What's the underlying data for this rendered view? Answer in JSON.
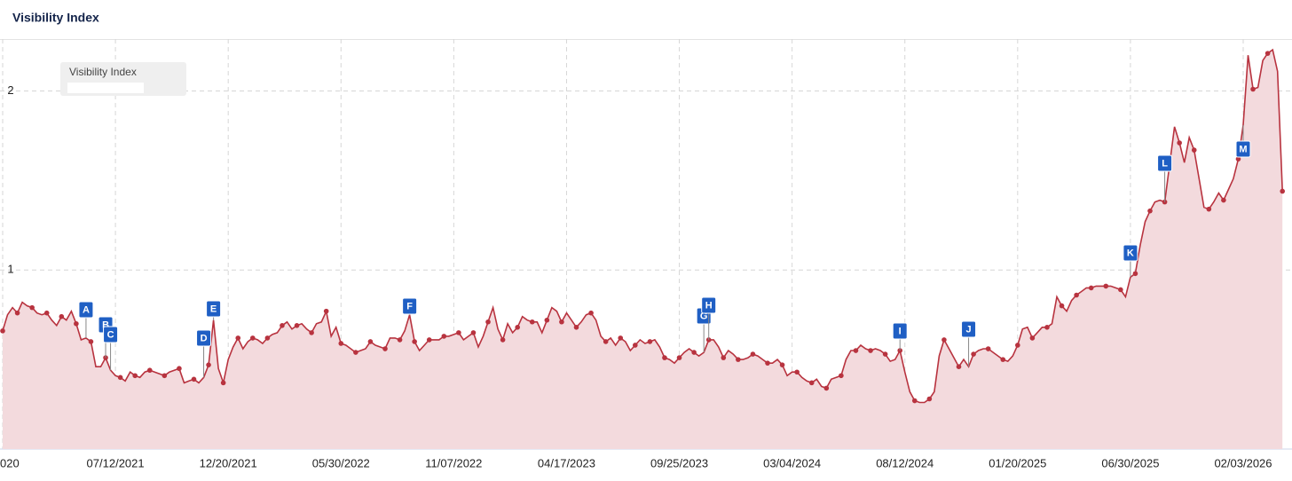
{
  "chart_data": {
    "type": "line",
    "title": "Visibility Index",
    "categories": [
      "020",
      null,
      null,
      null,
      null,
      null,
      null,
      null,
      null,
      null,
      null,
      null,
      null,
      null,
      null,
      null,
      null,
      null,
      null,
      null,
      null,
      null,
      null,
      "07/12/2021",
      null,
      null,
      null,
      null,
      null,
      null,
      null,
      null,
      null,
      null,
      null,
      null,
      null,
      null,
      null,
      null,
      null,
      null,
      null,
      null,
      null,
      null,
      "12/20/2021",
      null,
      null,
      null,
      null,
      null,
      null,
      null,
      null,
      null,
      null,
      null,
      null,
      null,
      null,
      null,
      null,
      null,
      null,
      null,
      null,
      null,
      null,
      "05/30/2022",
      null,
      null,
      null,
      null,
      null,
      null,
      null,
      null,
      null,
      null,
      null,
      null,
      null,
      null,
      null,
      null,
      null,
      null,
      null,
      null,
      null,
      null,
      "11/07/2022",
      null,
      null,
      null,
      null,
      null,
      null,
      null,
      null,
      null,
      null,
      null,
      null,
      null,
      null,
      null,
      null,
      null,
      null,
      null,
      null,
      null,
      null,
      "04/17/2023",
      null,
      null,
      null,
      null,
      null,
      null,
      null,
      null,
      null,
      null,
      null,
      null,
      null,
      null,
      null,
      null,
      null,
      null,
      null,
      null,
      null,
      null,
      "09/25/2023",
      null,
      null,
      null,
      null,
      null,
      null,
      null,
      null,
      null,
      null,
      null,
      null,
      null,
      null,
      null,
      null,
      null,
      null,
      null,
      null,
      null,
      null,
      "03/04/2024",
      null,
      null,
      null,
      null,
      null,
      null,
      null,
      null,
      null,
      null,
      null,
      null,
      null,
      null,
      null,
      null,
      null,
      null,
      null,
      null,
      null,
      null,
      "08/12/2024",
      null,
      null,
      null,
      null,
      null,
      null,
      null,
      null,
      null,
      null,
      null,
      null,
      null,
      null,
      null,
      null,
      null,
      null,
      null,
      null,
      null,
      null,
      "01/20/2025",
      null,
      null,
      null,
      null,
      null,
      null,
      null,
      null,
      null,
      null,
      null,
      null,
      null,
      null,
      null,
      null,
      null,
      null,
      null,
      null,
      null,
      null,
      "06/30/2025",
      null,
      null,
      null,
      null,
      null,
      null,
      null,
      null,
      null,
      null,
      null,
      null,
      null,
      null,
      null,
      null,
      null,
      null,
      null,
      null,
      null,
      null,
      "02/03/2026",
      null,
      null,
      null,
      null,
      null,
      null,
      null,
      null
    ],
    "series": [
      {
        "name": "Visibility Index",
        "color": "#b8333f",
        "fill": "#f3dadd",
        "values": [
          0.66,
          0.75,
          0.79,
          0.76,
          0.82,
          0.8,
          0.79,
          0.76,
          0.75,
          0.76,
          0.72,
          0.69,
          0.74,
          0.72,
          0.77,
          0.7,
          0.61,
          0.62,
          0.6,
          0.46,
          0.46,
          0.51,
          0.44,
          0.41,
          0.4,
          0.38,
          0.43,
          0.41,
          0.4,
          0.43,
          0.44,
          0.43,
          0.42,
          0.41,
          0.43,
          0.44,
          0.45,
          0.37,
          0.38,
          0.39,
          0.37,
          0.4,
          0.47,
          0.72,
          0.45,
          0.37,
          0.5,
          0.57,
          0.62,
          0.56,
          0.6,
          0.62,
          0.61,
          0.59,
          0.62,
          0.64,
          0.65,
          0.69,
          0.71,
          0.67,
          0.69,
          0.7,
          0.67,
          0.65,
          0.7,
          0.71,
          0.77,
          0.63,
          0.68,
          0.59,
          0.58,
          0.56,
          0.54,
          0.55,
          0.56,
          0.6,
          0.58,
          0.57,
          0.56,
          0.62,
          0.62,
          0.61,
          0.66,
          0.75,
          0.6,
          0.55,
          0.58,
          0.61,
          0.61,
          0.61,
          0.63,
          0.63,
          0.64,
          0.65,
          0.61,
          0.63,
          0.65,
          0.57,
          0.63,
          0.71,
          0.79,
          0.67,
          0.61,
          0.7,
          0.65,
          0.68,
          0.74,
          0.72,
          0.71,
          0.71,
          0.65,
          0.72,
          0.79,
          0.77,
          0.71,
          0.76,
          0.72,
          0.68,
          0.71,
          0.75,
          0.76,
          0.72,
          0.63,
          0.6,
          0.62,
          0.58,
          0.62,
          0.6,
          0.55,
          0.58,
          0.61,
          0.59,
          0.6,
          0.61,
          0.57,
          0.51,
          0.5,
          0.48,
          0.51,
          0.54,
          0.56,
          0.54,
          0.52,
          0.54,
          0.61,
          0.61,
          0.57,
          0.51,
          0.55,
          0.53,
          0.5,
          0.5,
          0.51,
          0.53,
          0.52,
          0.5,
          0.48,
          0.48,
          0.5,
          0.47,
          0.41,
          0.43,
          0.43,
          0.4,
          0.38,
          0.37,
          0.39,
          0.35,
          0.34,
          0.39,
          0.4,
          0.41,
          0.5,
          0.55,
          0.55,
          0.58,
          0.56,
          0.55,
          0.56,
          0.55,
          0.53,
          0.49,
          0.5,
          0.55,
          0.43,
          0.32,
          0.27,
          0.26,
          0.26,
          0.28,
          0.32,
          0.52,
          0.61,
          0.56,
          0.51,
          0.46,
          0.5,
          0.46,
          0.53,
          0.55,
          0.56,
          0.56,
          0.54,
          0.52,
          0.5,
          0.49,
          0.52,
          0.58,
          0.67,
          0.68,
          0.62,
          0.65,
          0.68,
          0.68,
          0.7,
          0.85,
          0.8,
          0.77,
          0.83,
          0.86,
          0.88,
          0.9,
          0.9,
          0.91,
          0.91,
          0.91,
          0.91,
          0.9,
          0.89,
          0.85,
          0.96,
          0.98,
          1.14,
          1.27,
          1.33,
          1.38,
          1.39,
          1.38,
          1.59,
          1.8,
          1.71,
          1.6,
          1.74,
          1.67,
          1.51,
          1.35,
          1.34,
          1.38,
          1.43,
          1.39,
          1.45,
          1.51,
          1.62,
          1.81,
          2.2,
          2.01,
          2.02,
          2.17,
          2.21,
          2.23,
          2.11,
          1.44
        ]
      }
    ],
    "annotations": [
      "A",
      "B",
      "C",
      "D",
      "E",
      "F",
      "G",
      "H",
      "I",
      "J",
      "K",
      "L",
      "M"
    ],
    "ylim": [
      0,
      2.29
    ],
    "yticks": [
      1,
      2
    ],
    "grid": true
  }
}
